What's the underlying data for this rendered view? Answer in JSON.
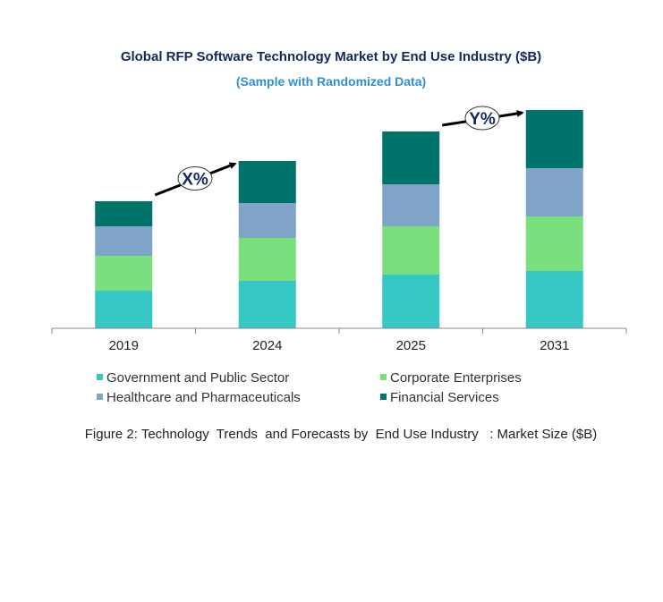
{
  "chart_data": {
    "type": "bar",
    "stacked": true,
    "title": "Global RFP Software Technology Market by End Use Industry ($B)",
    "subtitle": "(Sample with Randomized Data)",
    "caption": "Figure 2: Technology  Trends  and Forecasts by  End Use Industry   : Market Size ($B)",
    "categories": [
      "2019",
      "2024",
      "2025",
      "2031"
    ],
    "series": [
      {
        "name": "Government and Public Sector",
        "color": "#36c6c4",
        "values": [
          42,
          53,
          60,
          64
        ]
      },
      {
        "name": "Corporate Enterprises",
        "color": "#7ae07e",
        "values": [
          39,
          48,
          54,
          61
        ]
      },
      {
        "name": "Healthcare and Pharmaceuticals",
        "color": "#7fa4c8",
        "values": [
          33,
          39,
          47,
          54
        ]
      },
      {
        "name": "Financial Services",
        "color": "#00736a",
        "values": [
          28,
          47,
          59,
          65
        ]
      }
    ],
    "annotations": [
      {
        "label": "X%",
        "from": "2019",
        "to": "2024"
      },
      {
        "label": "Y%",
        "from": "2025",
        "to": "2031"
      }
    ],
    "ylim": [
      0,
      250
    ],
    "y_axis_visible": false,
    "grid": false,
    "legend_position": "bottom"
  }
}
